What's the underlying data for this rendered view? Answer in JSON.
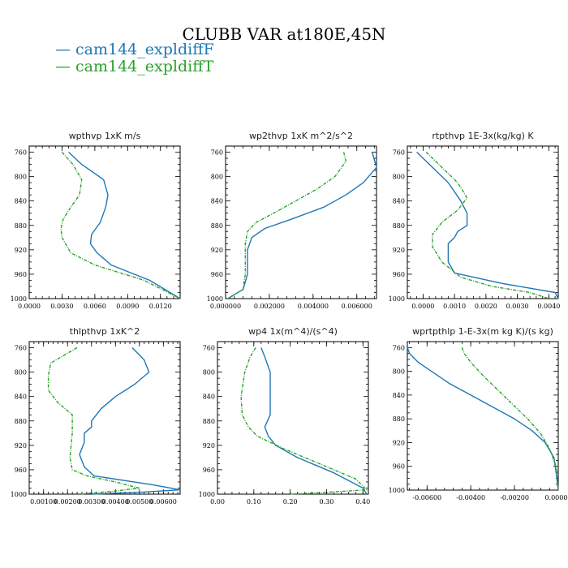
{
  "figure_title": "CLUBB VAR at180E,45N",
  "legend": [
    {
      "label": "cam144_expldiffF",
      "color": "#1f77b4"
    },
    {
      "label": "cam144_expldiffT",
      "color": "#2ca02c"
    }
  ],
  "chart_data": [
    {
      "type": "line",
      "title": "wpthvp  1xK m/s",
      "ylim": [
        1000,
        750
      ],
      "yticks": [
        "760",
        "800",
        "840",
        "880",
        "920",
        "960",
        "1000"
      ],
      "xlim": [
        0.0,
        0.0138
      ],
      "xticks": [
        0.0,
        0.003,
        0.006,
        0.009,
        0.012
      ],
      "xticklabels": [
        "0.0000",
        "0.0030",
        "0.0060",
        "0.0090",
        "0.0120"
      ],
      "series": [
        {
          "name": "cam144_expldiffF",
          "x": [
            0.0036,
            0.0048,
            0.0068,
            0.0072,
            0.007,
            0.0065,
            0.0057,
            0.0056,
            0.0062,
            0.0075,
            0.011,
            0.0138
          ],
          "y": [
            760,
            780,
            805,
            830,
            850,
            875,
            895,
            910,
            925,
            945,
            970,
            1000
          ]
        },
        {
          "name": "cam144_expldiffT",
          "x": [
            0.003,
            0.004,
            0.0048,
            0.0046,
            0.0038,
            0.0031,
            0.0029,
            0.003,
            0.0038,
            0.006,
            0.0105,
            0.0138
          ],
          "y": [
            760,
            780,
            805,
            830,
            850,
            870,
            885,
            900,
            925,
            945,
            970,
            1000
          ]
        }
      ]
    },
    {
      "type": "line",
      "title": "wp2thvp  1xK m^2/s^2",
      "ylim": [
        1000,
        750
      ],
      "yticks": [
        "760",
        "800",
        "840",
        "880",
        "920",
        "960",
        "1000"
      ],
      "xlim": [
        0.0,
        0.0069
      ],
      "xticks": [
        0.0,
        0.002,
        0.004,
        0.006
      ],
      "xticklabels": [
        "0.000000",
        "0.002000",
        "0.004000",
        "0.006000"
      ],
      "series": [
        {
          "name": "cam144_expldiffF",
          "x": [
            0.0067,
            0.0069,
            0.0063,
            0.0055,
            0.0045,
            0.003,
            0.0018,
            0.0012,
            0.001,
            0.001,
            0.0008,
            0.0001
          ],
          "y": [
            760,
            785,
            810,
            830,
            850,
            870,
            885,
            900,
            920,
            960,
            985,
            1000
          ]
        },
        {
          "name": "cam144_expldiffT",
          "x": [
            0.0054,
            0.0055,
            0.005,
            0.0042,
            0.0032,
            0.0022,
            0.0014,
            0.001,
            0.0009,
            0.0009,
            0.0008,
            0.0001
          ],
          "y": [
            760,
            775,
            800,
            820,
            840,
            860,
            875,
            890,
            910,
            960,
            985,
            1000
          ]
        }
      ]
    },
    {
      "type": "line",
      "title": "rtpthvp  1E-3x(kg/kg) K",
      "ylim": [
        1000,
        750
      ],
      "yticks": [
        "760",
        "800",
        "840",
        "880",
        "920",
        "960",
        "1000"
      ],
      "xlim": [
        -0.0005,
        0.0043
      ],
      "xticks": [
        0.0,
        0.001,
        0.002,
        0.003,
        0.004
      ],
      "xticklabels": [
        "0.0000",
        "0.0010",
        "0.0020",
        "0.0030",
        "0.0040"
      ],
      "series": [
        {
          "name": "cam144_expldiffF",
          "x": [
            -0.0002,
            0.0003,
            0.0008,
            0.0012,
            0.0014,
            0.0014,
            0.0011,
            0.001,
            0.0008,
            0.0008,
            0.001,
            0.0025,
            0.0042,
            0.0043
          ],
          "y": [
            760,
            785,
            810,
            840,
            860,
            880,
            890,
            900,
            910,
            940,
            958,
            975,
            990,
            1000
          ]
        },
        {
          "name": "cam144_expldiffT",
          "x": [
            0.0001,
            0.0006,
            0.0011,
            0.0014,
            0.0011,
            0.0006,
            0.0003,
            0.0003,
            0.0006,
            0.0012,
            0.0022,
            0.0034,
            0.004
          ],
          "y": [
            760,
            785,
            810,
            835,
            855,
            875,
            895,
            915,
            940,
            965,
            980,
            990,
            1000
          ]
        }
      ]
    },
    {
      "type": "line",
      "title": "thlpthvp  1xK^2",
      "ylim": [
        1000,
        750
      ],
      "yticks": [
        "760",
        "800",
        "840",
        "880",
        "920",
        "960",
        "1000"
      ],
      "xlim": [
        0.0004,
        0.0067
      ],
      "xticks": [
        0.001,
        0.002,
        0.003,
        0.004,
        0.005,
        0.006
      ],
      "xticklabels": [
        "0.00100",
        "0.00200",
        "0.00300",
        "0.00400",
        "0.00500",
        "0.00600"
      ],
      "series": [
        {
          "name": "cam144_expldiffF",
          "x": [
            0.0047,
            0.0052,
            0.0054,
            0.0048,
            0.004,
            0.0034,
            0.003,
            0.003,
            0.0027,
            0.0027,
            0.0025,
            0.0027,
            0.0031,
            0.0056,
            0.0067,
            0.005,
            0.003
          ],
          "y": [
            760,
            780,
            800,
            820,
            840,
            860,
            880,
            890,
            900,
            915,
            935,
            955,
            970,
            985,
            993,
            997,
            1000
          ]
        },
        {
          "name": "cam144_expldiffT",
          "x": [
            0.0024,
            0.0013,
            0.0012,
            0.0012,
            0.0016,
            0.0022,
            0.0022,
            0.0021,
            0.0022,
            0.0028,
            0.004,
            0.005,
            0.004,
            0.0025
          ],
          "y": [
            760,
            785,
            805,
            830,
            850,
            870,
            900,
            940,
            960,
            970,
            980,
            990,
            995,
            1000
          ]
        }
      ]
    },
    {
      "type": "line",
      "title": "wp4  1x(m^4)/(s^4)",
      "ylim": [
        1000,
        750
      ],
      "yticks": [
        "760",
        "800",
        "840",
        "880",
        "920",
        "960",
        "1000"
      ],
      "xlim": [
        0.0,
        0.415
      ],
      "xticks": [
        0.0,
        0.1,
        0.2,
        0.3,
        0.4
      ],
      "xticklabels": [
        "0.00",
        "0.10",
        "0.20",
        "0.30",
        "0.40"
      ],
      "series": [
        {
          "name": "cam144_expldiffF",
          "x": [
            0.12,
            0.13,
            0.145,
            0.145,
            0.145,
            0.13,
            0.14,
            0.16,
            0.22,
            0.32,
            0.4,
            0.41
          ],
          "y": [
            760,
            775,
            800,
            840,
            870,
            890,
            905,
            920,
            940,
            965,
            990,
            1000
          ]
        },
        {
          "name": "cam144_expldiffT",
          "x": [
            0.105,
            0.09,
            0.075,
            0.065,
            0.068,
            0.085,
            0.11,
            0.18,
            0.28,
            0.38,
            0.41,
            0.3,
            0.2
          ],
          "y": [
            760,
            775,
            800,
            840,
            870,
            890,
            905,
            925,
            950,
            975,
            993,
            997,
            1000
          ]
        }
      ]
    },
    {
      "type": "line",
      "title": "wprtpthlp  1-E-3x(m kg K)/(s kg)",
      "ylim": [
        1000,
        750
      ],
      "yticks": [
        "760",
        "800",
        "840",
        "880",
        "920",
        "960",
        "1000"
      ],
      "xlim": [
        -0.0069,
        0.0
      ],
      "xticks": [
        -0.006,
        -0.004,
        -0.002,
        0.0
      ],
      "xticklabels": [
        "-0.00600",
        "-0.00400",
        "-0.00200",
        "0.00000"
      ],
      "series": [
        {
          "name": "cam144_expldiffF",
          "x": [
            -0.0069,
            -0.0068,
            -0.0064,
            -0.0058,
            -0.005,
            -0.004,
            -0.003,
            -0.002,
            -0.0012,
            -0.0006,
            -0.0002,
            -0.0001,
            0.0
          ],
          "y": [
            760,
            770,
            785,
            800,
            820,
            840,
            860,
            880,
            900,
            920,
            945,
            970,
            1000
          ]
        },
        {
          "name": "cam144_expldiffT",
          "x": [
            -0.0044,
            -0.0043,
            -0.004,
            -0.0035,
            -0.0028,
            -0.0021,
            -0.0014,
            -0.0008,
            -0.0004,
            -0.0001,
            0.0
          ],
          "y": [
            760,
            770,
            785,
            805,
            830,
            855,
            880,
            905,
            930,
            960,
            1000
          ]
        }
      ]
    }
  ]
}
